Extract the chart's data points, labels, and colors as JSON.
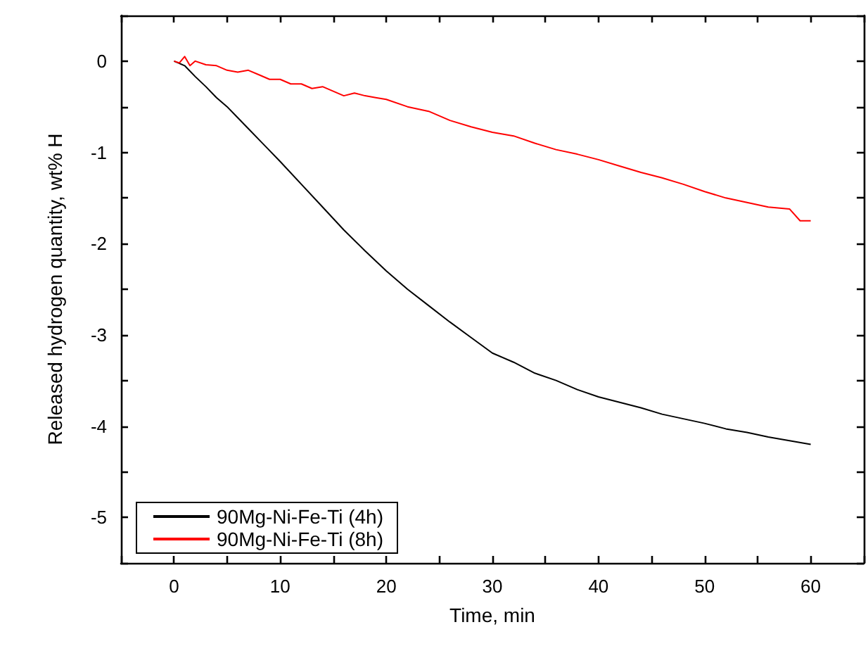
{
  "chart_data": {
    "type": "line",
    "xlabel": "Time, min",
    "ylabel": "Released hydrogen quantity, wt% H",
    "xlim": [
      -5,
      65
    ],
    "xticks": [
      {
        "value": -5,
        "label": null
      },
      0,
      {
        "value": 5,
        "label": null
      },
      10,
      {
        "value": 15,
        "label": null
      },
      20,
      {
        "value": 25,
        "label": null
      },
      30,
      {
        "value": 35,
        "label": null
      },
      40,
      {
        "value": 45,
        "label": null
      },
      50,
      {
        "value": 55,
        "label": null
      },
      60,
      {
        "value": 65,
        "label": null
      }
    ],
    "ylim": [
      -5.5,
      0.5
    ],
    "yticks": [
      {
        "value": -5.5,
        "label": null
      },
      -5,
      {
        "value": -4.5,
        "label": null
      },
      -4,
      {
        "value": -3.5,
        "label": null
      },
      -3,
      {
        "value": -2.5,
        "label": null
      },
      -2,
      {
        "value": -1.5,
        "label": null
      },
      -1,
      {
        "value": -0.5,
        "label": null
      },
      0,
      {
        "value": 0.5,
        "label": null
      }
    ],
    "grid": false,
    "legend": "bottom left",
    "marker": "none",
    "line_style": "solid",
    "series": [
      {
        "name": "90Mg-Ni-Fe-Ti (4h)",
        "color": "#000000",
        "x": [
          0,
          1,
          2,
          3,
          4,
          5,
          6,
          7,
          8,
          9,
          10,
          12,
          14,
          16,
          18,
          20,
          22,
          24,
          26,
          28,
          30,
          32,
          34,
          36,
          38,
          40,
          42,
          44,
          46,
          48,
          50,
          52,
          54,
          56,
          58,
          60
        ],
        "values": [
          0,
          -0.05,
          -0.17,
          -0.28,
          -0.4,
          -0.5,
          -0.62,
          -0.74,
          -0.86,
          -0.98,
          -1.1,
          -1.35,
          -1.6,
          -1.85,
          -2.08,
          -2.3,
          -2.5,
          -2.68,
          -2.86,
          -3.03,
          -3.2,
          -3.3,
          -3.42,
          -3.5,
          -3.6,
          -3.68,
          -3.74,
          -3.8,
          -3.87,
          -3.92,
          -3.97,
          -4.03,
          -4.07,
          -4.12,
          -4.16,
          -4.2
        ]
      },
      {
        "name": "90Mg-Ni-Fe-Ti (8h)",
        "color": "#ff0000",
        "x": [
          0,
          0.5,
          1,
          1.5,
          2,
          3,
          4,
          5,
          6,
          7,
          8,
          9,
          10,
          11,
          12,
          13,
          14,
          15,
          16,
          17,
          18,
          19,
          20,
          22,
          24,
          25,
          26,
          28,
          30,
          32,
          34,
          36,
          38,
          40,
          42,
          44,
          46,
          48,
          50,
          52,
          54,
          56,
          58,
          59,
          60
        ],
        "values": [
          0,
          -0.02,
          0.05,
          -0.05,
          0,
          -0.04,
          -0.05,
          -0.1,
          -0.12,
          -0.1,
          -0.15,
          -0.2,
          -0.2,
          -0.25,
          -0.25,
          -0.3,
          -0.28,
          -0.33,
          -0.38,
          -0.35,
          -0.38,
          -0.4,
          -0.42,
          -0.5,
          -0.55,
          -0.6,
          -0.65,
          -0.72,
          -0.78,
          -0.82,
          -0.9,
          -0.97,
          -1.02,
          -1.08,
          -1.15,
          -1.22,
          -1.28,
          -1.35,
          -1.43,
          -1.5,
          -1.55,
          -1.6,
          -1.62,
          -1.75,
          -1.75
        ]
      }
    ]
  }
}
